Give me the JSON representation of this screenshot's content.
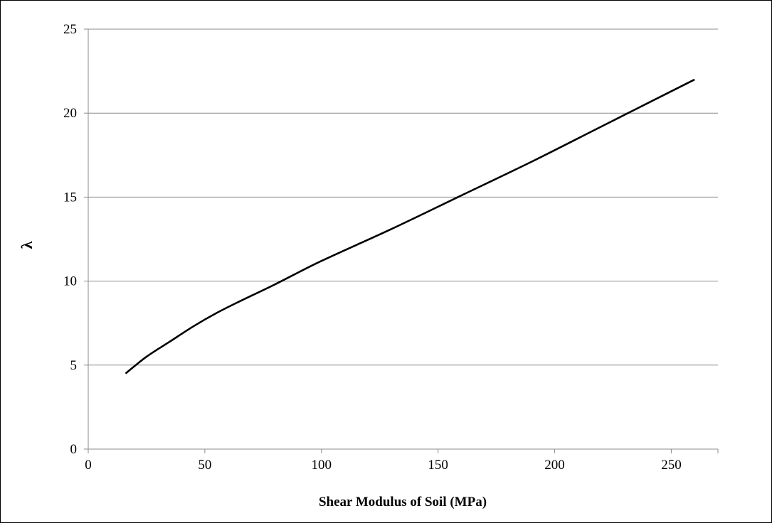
{
  "chart_data": {
    "type": "line",
    "title": "",
    "xlabel": "Shear Modulus of Soil (MPa)",
    "ylabel": "λ",
    "xlim": [
      0,
      270
    ],
    "ylim": [
      0,
      25
    ],
    "x_ticks": [
      "0",
      "50",
      "100",
      "150",
      "200",
      "250"
    ],
    "y_ticks": [
      "0",
      "5",
      "10",
      "15",
      "20",
      "25"
    ],
    "grid": "horizontal",
    "legend": "none",
    "series": [
      {
        "color": "#000000",
        "x": [
          16,
          25,
          35,
          45,
          55,
          65,
          80,
          100,
          130,
          160,
          190,
          220,
          250,
          260
        ],
        "y": [
          4.5,
          5.5,
          6.4,
          7.3,
          8.1,
          8.8,
          9.8,
          11.2,
          13.1,
          15.1,
          17.1,
          19.2,
          21.3,
          22.0
        ]
      }
    ]
  }
}
